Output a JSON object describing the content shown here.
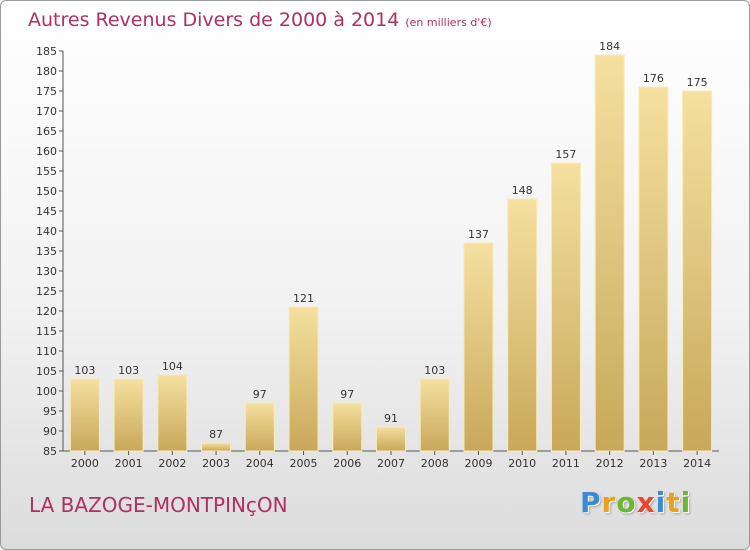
{
  "header": {
    "title": "Autres Revenus Divers de 2000 à 2014",
    "unit": "(en milliers d'€)"
  },
  "footer": {
    "place": "LA BAZOGE-MONTPINçON",
    "logo": [
      "P",
      "r",
      "o",
      "x",
      "i",
      "t",
      "i"
    ],
    "logo_colors": [
      "#3a8ad4",
      "#e8a020",
      "#6ab830",
      "#e84830",
      "#3a8ad4",
      "#e8a020",
      "#6ab830"
    ]
  },
  "colors": {
    "bar_fill_top": "#f5e0a0",
    "bar_fill_bottom": "#c8a85a",
    "bar_edge": "#f8eab8",
    "title": "#b03060"
  },
  "chart_data": {
    "type": "bar",
    "title": "Autres Revenus Divers de 2000 à 2014",
    "subtitle": "(en milliers d'€)",
    "categories": [
      "2000",
      "2001",
      "2002",
      "2003",
      "2004",
      "2005",
      "2006",
      "2007",
      "2008",
      "2009",
      "2010",
      "2011",
      "2012",
      "2013",
      "2014"
    ],
    "values": [
      103,
      103,
      104,
      87,
      97,
      121,
      97,
      91,
      103,
      137,
      148,
      157,
      184,
      176,
      175
    ],
    "ylim": [
      85,
      185
    ],
    "yticks": [
      85,
      90,
      95,
      100,
      105,
      110,
      115,
      120,
      125,
      130,
      135,
      140,
      145,
      150,
      155,
      160,
      165,
      170,
      175,
      180,
      185
    ],
    "grid": false,
    "legend": "none"
  }
}
